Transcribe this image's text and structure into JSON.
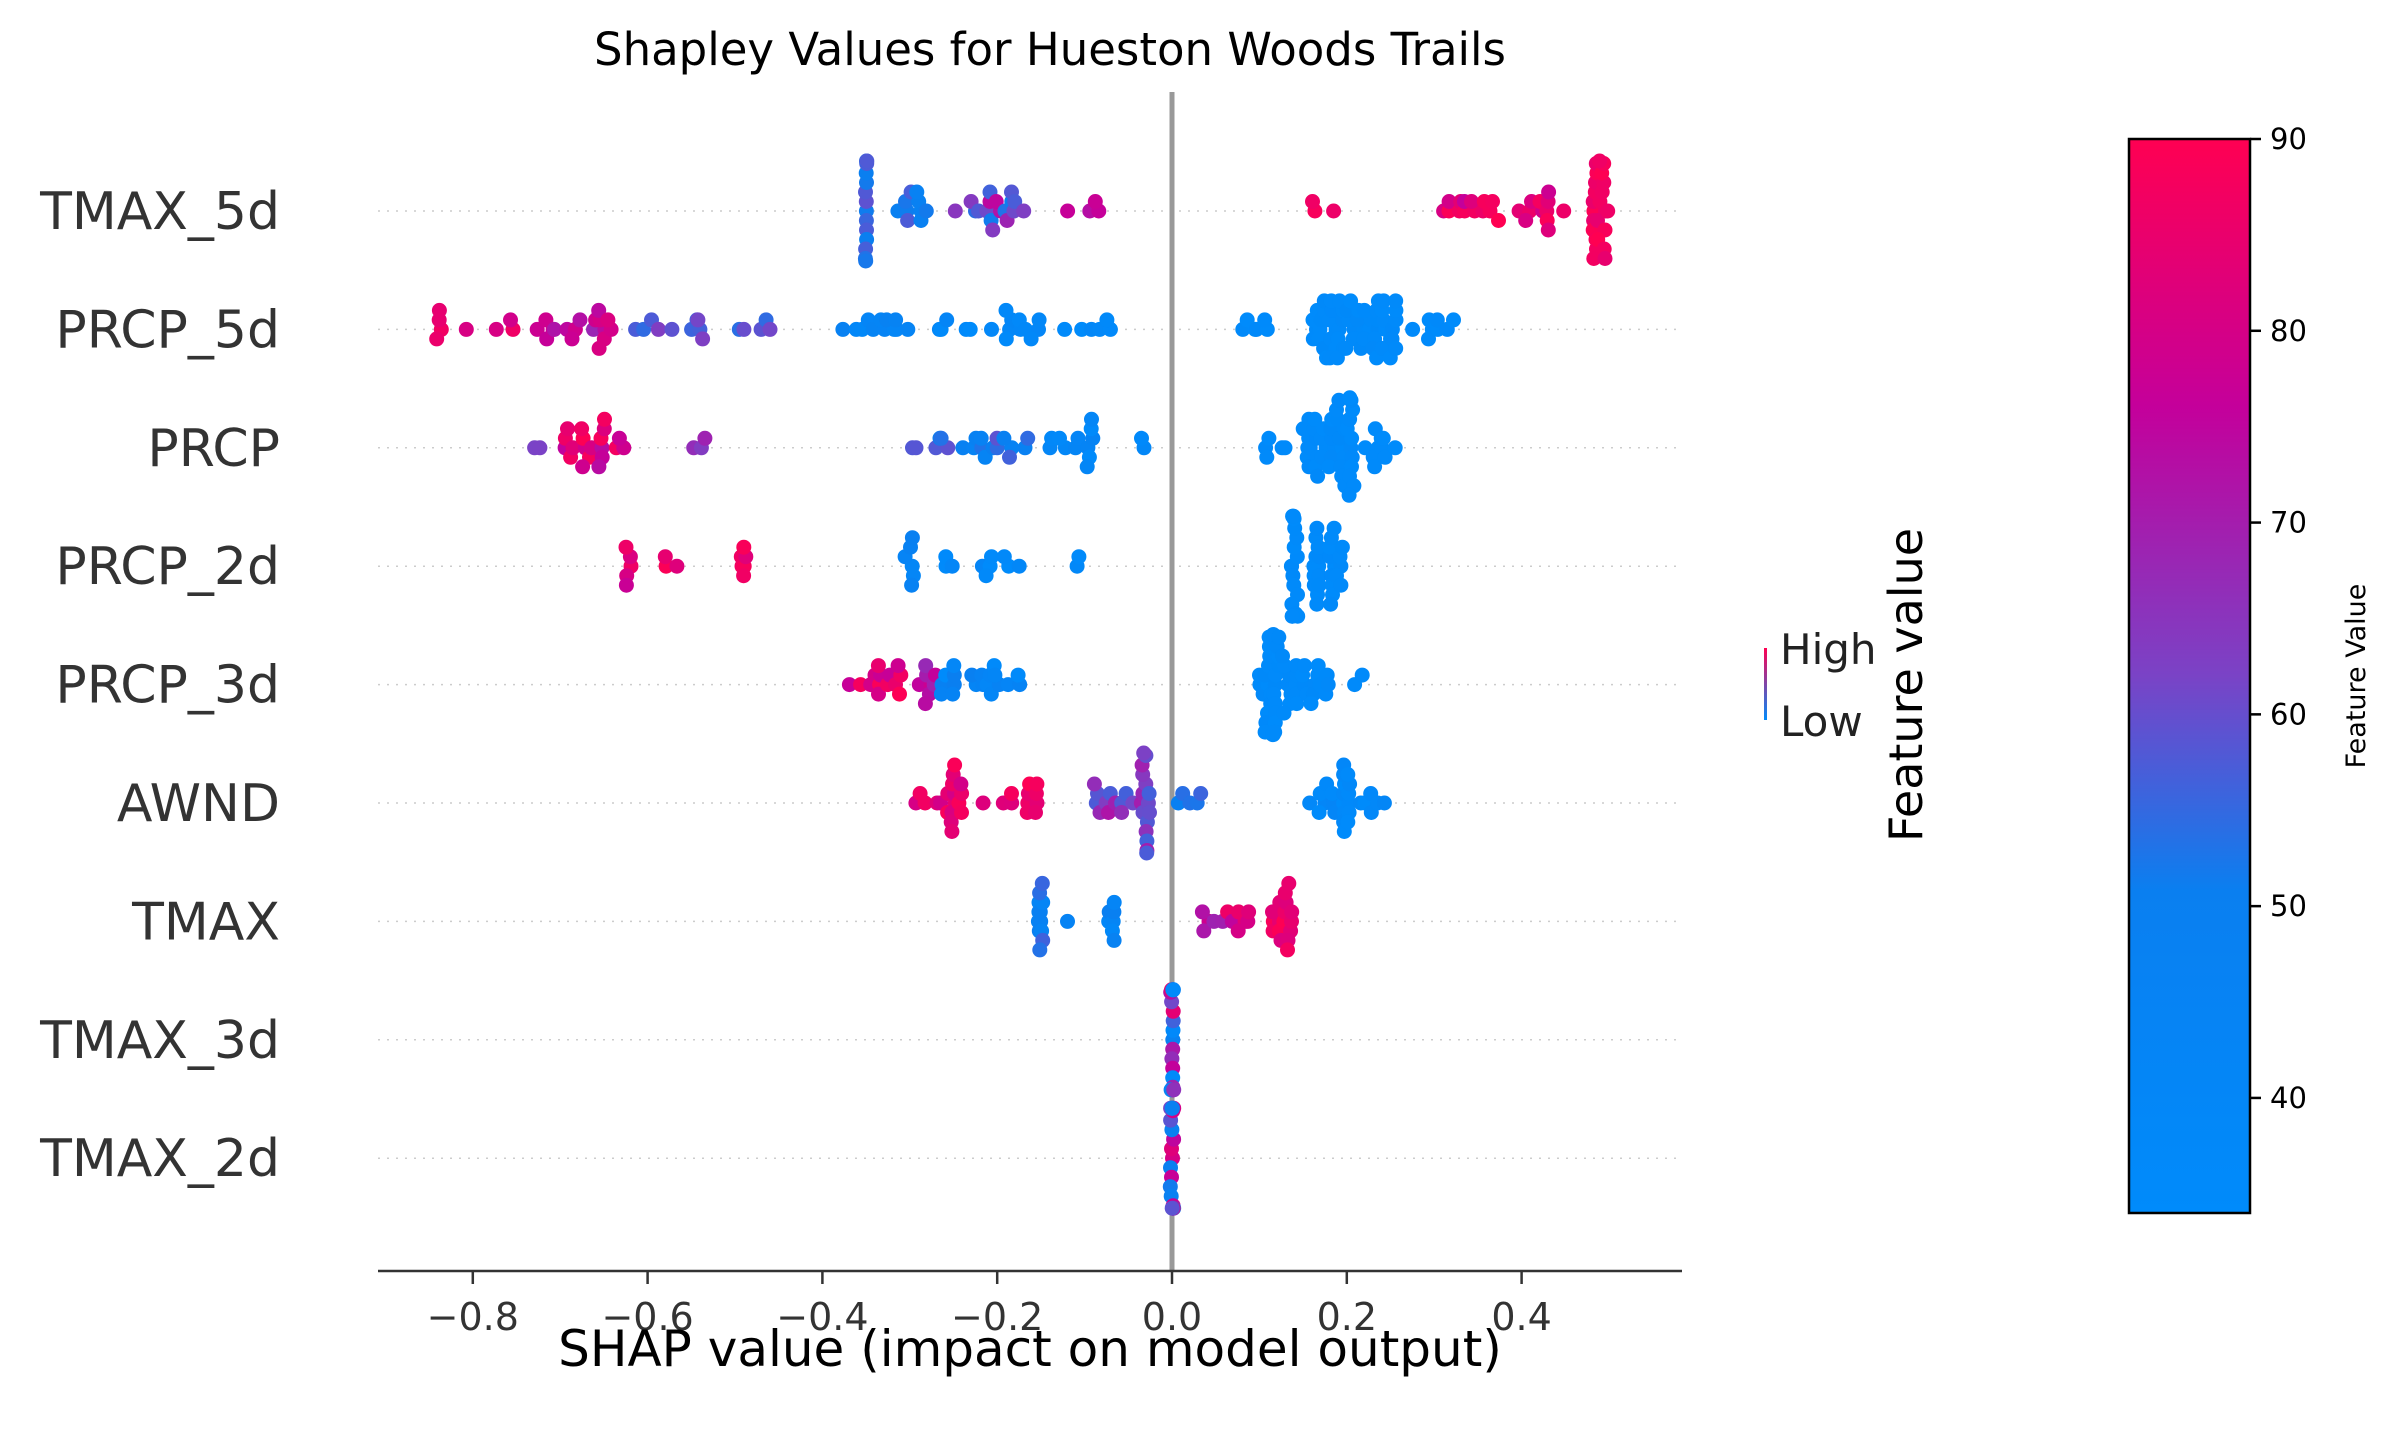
{
  "chart_data": {
    "type": "scatter",
    "title": "Shapley Values for Hueston Woods Trails",
    "xlabel": "SHAP value (impact on model output)",
    "xlim": [
      -0.91,
      0.58
    ],
    "xticks": [
      -0.8,
      -0.6,
      -0.4,
      -0.2,
      0.0,
      0.2,
      0.4
    ],
    "xtick_labels": [
      "−0.8",
      "−0.6",
      "−0.4",
      "−0.2",
      "0.0",
      "0.2",
      "0.4"
    ],
    "zero_line": 0.0,
    "legend": {
      "high": "High",
      "low": "Low",
      "title": "Feature value"
    },
    "colorbar": {
      "label": "Feature Value",
      "min": 34,
      "max": 90,
      "ticks": [
        40,
        50,
        60,
        70,
        80,
        90
      ],
      "colors": [
        "#008bfb",
        "#ff0052"
      ]
    },
    "colors": {
      "low": "#008bfb",
      "high": "#ff0052",
      "zero_line": "#999999",
      "row_line": "#cccccc"
    },
    "features": [
      {
        "name": "TMAX_5d",
        "clusters": [
          {
            "x": -0.35,
            "spread": 0.001,
            "n": 14,
            "c": [
              0.25,
              0.45
            ]
          },
          {
            "x": -0.3,
            "spread": 0.02,
            "n": 10,
            "c": [
              0.2,
              0.45
            ]
          },
          {
            "x": -0.2,
            "spread": 0.05,
            "n": 18,
            "c": [
              0.3,
              0.75
            ]
          },
          {
            "x": -0.1,
            "spread": 0.02,
            "n": 4,
            "c": [
              0.6,
              0.85
            ]
          },
          {
            "x": 0.17,
            "spread": 0.015,
            "n": 3,
            "c": [
              0.85,
              1.0
            ]
          },
          {
            "x": 0.35,
            "spread": 0.04,
            "n": 14,
            "c": [
              0.75,
              1.0
            ]
          },
          {
            "x": 0.42,
            "spread": 0.03,
            "n": 12,
            "c": [
              0.75,
              1.0
            ]
          },
          {
            "x": 0.49,
            "spread": 0.01,
            "n": 24,
            "c": [
              0.9,
              1.0
            ]
          }
        ]
      },
      {
        "name": "PRCP_5d",
        "clusters": [
          {
            "x": -0.84,
            "spread": 0.01,
            "n": 4,
            "c": [
              0.85,
              1.0
            ]
          },
          {
            "x": -0.78,
            "spread": 0.03,
            "n": 4,
            "c": [
              0.75,
              0.95
            ]
          },
          {
            "x": -0.7,
            "spread": 0.04,
            "n": 10,
            "c": [
              0.6,
              0.8
            ]
          },
          {
            "x": -0.65,
            "spread": 0.01,
            "n": 8,
            "c": [
              0.7,
              0.85
            ]
          },
          {
            "x": -0.57,
            "spread": 0.05,
            "n": 10,
            "c": [
              0.35,
              0.55
            ]
          },
          {
            "x": -0.47,
            "spread": 0.04,
            "n": 5,
            "c": [
              0.35,
              0.5
            ]
          },
          {
            "x": -0.34,
            "spread": 0.04,
            "n": 12,
            "c": [
              0.05,
              0.25
            ]
          },
          {
            "x": -0.21,
            "spread": 0.06,
            "n": 16,
            "c": [
              0.0,
              0.15
            ]
          },
          {
            "x": -0.1,
            "spread": 0.03,
            "n": 6,
            "c": [
              0.0,
              0.1
            ]
          },
          {
            "x": 0.1,
            "spread": 0.02,
            "n": 6,
            "c": [
              0.0,
              0.05
            ]
          },
          {
            "x": 0.21,
            "spread": 0.05,
            "n": 60,
            "c": [
              0.0,
              0.05
            ]
          },
          {
            "x": 0.3,
            "spread": 0.025,
            "n": 8,
            "c": [
              0.0,
              0.05
            ]
          }
        ]
      },
      {
        "name": "PRCP",
        "clusters": [
          {
            "x": -0.73,
            "spread": 0.01,
            "n": 2,
            "c": [
              0.5,
              0.65
            ]
          },
          {
            "x": -0.66,
            "spread": 0.04,
            "n": 20,
            "c": [
              0.7,
              1.0
            ]
          },
          {
            "x": -0.55,
            "spread": 0.02,
            "n": 3,
            "c": [
              0.5,
              0.7
            ]
          },
          {
            "x": -0.28,
            "spread": 0.03,
            "n": 6,
            "c": [
              0.3,
              0.45
            ]
          },
          {
            "x": -0.2,
            "spread": 0.04,
            "n": 14,
            "c": [
              0.15,
              0.45
            ]
          },
          {
            "x": -0.12,
            "spread": 0.03,
            "n": 12,
            "c": [
              0.0,
              0.2
            ]
          },
          {
            "x": -0.04,
            "spread": 0.02,
            "n": 2,
            "c": [
              0.0,
              0.1
            ]
          },
          {
            "x": 0.11,
            "spread": 0.02,
            "n": 5,
            "c": [
              0.0,
              0.05
            ]
          },
          {
            "x": 0.18,
            "spread": 0.03,
            "n": 45,
            "c": [
              0.0,
              0.05
            ]
          },
          {
            "x": 0.24,
            "spread": 0.02,
            "n": 10,
            "c": [
              0.0,
              0.05
            ]
          }
        ]
      },
      {
        "name": "PRCP_2d",
        "clusters": [
          {
            "x": -0.62,
            "spread": 0.005,
            "n": 5,
            "c": [
              0.7,
              0.95
            ]
          },
          {
            "x": -0.57,
            "spread": 0.01,
            "n": 3,
            "c": [
              0.85,
              1.0
            ]
          },
          {
            "x": -0.49,
            "spread": 0.003,
            "n": 6,
            "c": [
              0.85,
              1.0
            ]
          },
          {
            "x": -0.3,
            "spread": 0.006,
            "n": 6,
            "c": [
              0.1,
              0.3
            ]
          },
          {
            "x": -0.21,
            "spread": 0.05,
            "n": 10,
            "c": [
              0.0,
              0.2
            ]
          },
          {
            "x": -0.1,
            "spread": 0.01,
            "n": 2,
            "c": [
              0.0,
              0.1
            ]
          },
          {
            "x": 0.14,
            "spread": 0.004,
            "n": 18,
            "c": [
              0.0,
              0.05
            ]
          },
          {
            "x": 0.165,
            "spread": 0.004,
            "n": 14,
            "c": [
              0.0,
              0.05
            ]
          },
          {
            "x": 0.19,
            "spread": 0.01,
            "n": 14,
            "c": [
              0.0,
              0.05
            ]
          }
        ]
      },
      {
        "name": "PRCP_3d",
        "clusters": [
          {
            "x": -0.34,
            "spread": 0.03,
            "n": 14,
            "c": [
              0.75,
              1.0
            ]
          },
          {
            "x": -0.28,
            "spread": 0.01,
            "n": 8,
            "c": [
              0.55,
              0.8
            ]
          },
          {
            "x": -0.22,
            "spread": 0.05,
            "n": 20,
            "c": [
              0.0,
              0.3
            ]
          },
          {
            "x": 0.11,
            "spread": 0.01,
            "n": 18,
            "c": [
              0.0,
              0.05
            ]
          },
          {
            "x": 0.13,
            "spread": 0.015,
            "n": 22,
            "c": [
              0.0,
              0.05
            ]
          },
          {
            "x": 0.16,
            "spread": 0.02,
            "n": 14,
            "c": [
              0.0,
              0.05
            ]
          },
          {
            "x": 0.21,
            "spread": 0.01,
            "n": 2,
            "c": [
              0.0,
              0.05
            ]
          }
        ]
      },
      {
        "name": "AWND",
        "clusters": [
          {
            "x": -0.28,
            "spread": 0.02,
            "n": 5,
            "c": [
              0.8,
              1.0
            ]
          },
          {
            "x": -0.25,
            "spread": 0.01,
            "n": 14,
            "c": [
              0.8,
              1.0
            ]
          },
          {
            "x": -0.2,
            "spread": 0.02,
            "n": 4,
            "c": [
              0.8,
              1.0
            ]
          },
          {
            "x": -0.16,
            "spread": 0.006,
            "n": 8,
            "c": [
              0.85,
              1.0
            ]
          },
          {
            "x": -0.06,
            "spread": 0.03,
            "n": 14,
            "c": [
              0.4,
              0.7
            ]
          },
          {
            "x": -0.03,
            "spread": 0.005,
            "n": 14,
            "c": [
              0.4,
              0.65
            ]
          },
          {
            "x": 0.02,
            "spread": 0.02,
            "n": 5,
            "c": [
              0.2,
              0.4
            ]
          },
          {
            "x": 0.17,
            "spread": 0.02,
            "n": 8,
            "c": [
              0.0,
              0.15
            ]
          },
          {
            "x": 0.2,
            "spread": 0.004,
            "n": 14,
            "c": [
              0.0,
              0.1
            ]
          },
          {
            "x": 0.23,
            "spread": 0.015,
            "n": 6,
            "c": [
              0.0,
              0.15
            ]
          }
        ]
      },
      {
        "name": "TMAX",
        "clusters": [
          {
            "x": -0.15,
            "spread": 0.003,
            "n": 12,
            "c": [
              0.15,
              0.4
            ]
          },
          {
            "x": -0.12,
            "spread": 0.005,
            "n": 1,
            "c": [
              0.1,
              0.2
            ]
          },
          {
            "x": -0.07,
            "spread": 0.004,
            "n": 7,
            "c": [
              0.05,
              0.3
            ]
          },
          {
            "x": 0.05,
            "spread": 0.02,
            "n": 6,
            "c": [
              0.55,
              0.8
            ]
          },
          {
            "x": 0.08,
            "spread": 0.02,
            "n": 6,
            "c": [
              0.8,
              1.0
            ]
          },
          {
            "x": 0.125,
            "spread": 0.012,
            "n": 18,
            "c": [
              0.85,
              1.0
            ]
          }
        ]
      },
      {
        "name": "TMAX_3d",
        "clusters": [
          {
            "x": 0.0,
            "spread": 0.002,
            "n": 22,
            "c": [
              0.0,
              1.0
            ]
          }
        ]
      },
      {
        "name": "TMAX_2d",
        "clusters": [
          {
            "x": 0.0,
            "spread": 0.002,
            "n": 22,
            "c": [
              0.0,
              1.0
            ]
          }
        ]
      }
    ]
  }
}
